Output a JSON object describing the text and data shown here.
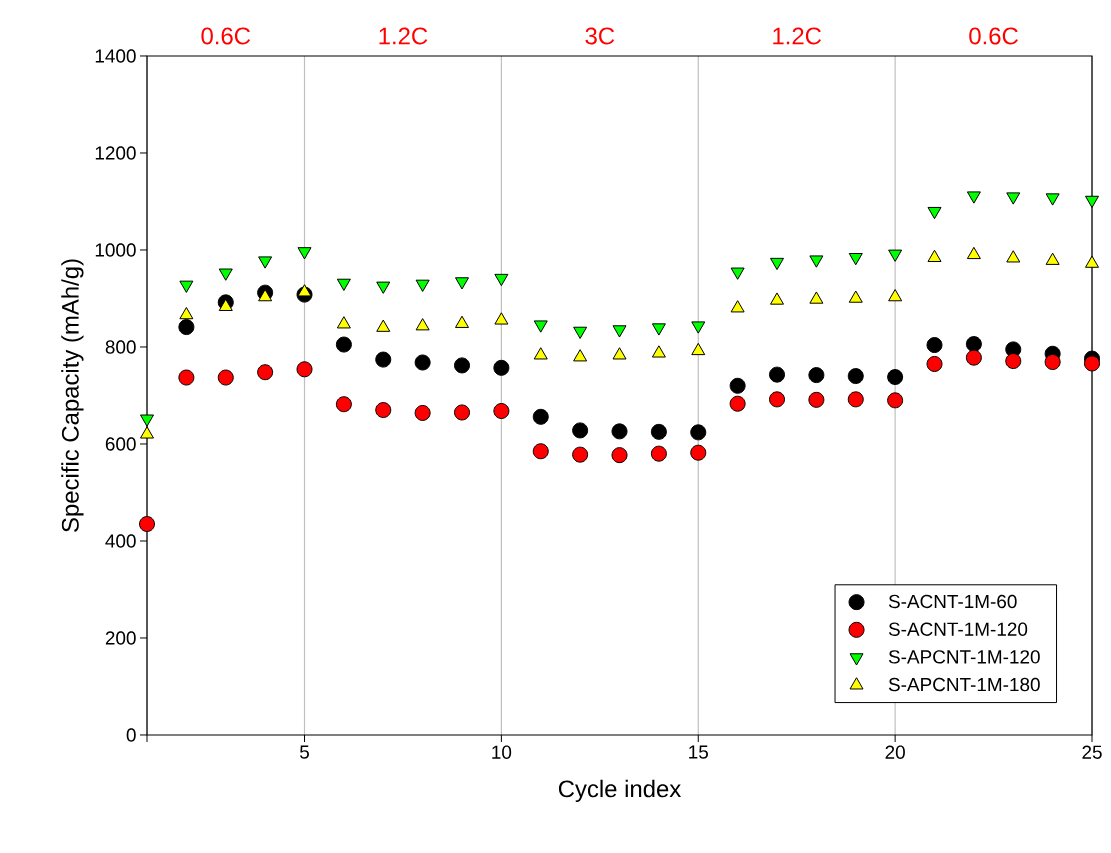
{
  "chart_data": {
    "type": "scatter",
    "xlabel": "Cycle index",
    "ylabel": "Specific Capacity (mAh/g)",
    "x": [
      1,
      2,
      3,
      4,
      5,
      6,
      7,
      8,
      9,
      10,
      11,
      12,
      13,
      14,
      15,
      16,
      17,
      18,
      19,
      20,
      21,
      22,
      23,
      24,
      25
    ],
    "xlim": [
      1,
      25
    ],
    "xticks": [
      {
        "value": 1,
        "label": null
      },
      5,
      10,
      15,
      20,
      25
    ],
    "ylim": [
      0,
      1400
    ],
    "yticks": [
      0,
      200,
      400,
      600,
      800,
      1000,
      1200,
      1400
    ],
    "grid": "x",
    "legend": "bottom right",
    "annotations": [
      "0.6C",
      "1.2C",
      "3C",
      "1.2C",
      "0.6C"
    ],
    "series": [
      {
        "name": "S-ACNT-1M-60",
        "color": "#000000",
        "marker": "circle",
        "values": [
          null,
          841,
          892,
          912,
          908,
          805,
          774,
          768,
          762,
          757,
          656,
          628,
          626,
          625,
          624,
          720,
          743,
          742,
          740,
          738,
          804,
          806,
          795,
          786,
          776
        ]
      },
      {
        "name": "S-ACNT-1M-120",
        "color": "#ff0000",
        "marker": "circle",
        "values": [
          435,
          737,
          737,
          748,
          754,
          682,
          670,
          664,
          665,
          668,
          585,
          578,
          577,
          580,
          582,
          683,
          692,
          691,
          692,
          690,
          765,
          778,
          771,
          769,
          766
        ]
      },
      {
        "name": "S-APCNT-1M-120",
        "color": "#00ff00",
        "marker": "triangle_down",
        "values": [
          652,
          928,
          953,
          978,
          997,
          932,
          926,
          930,
          935,
          942,
          846,
          833,
          836,
          840,
          844,
          955,
          975,
          980,
          985,
          992,
          1080,
          1112,
          1110,
          1108,
          1103
        ]
      },
      {
        "name": "S-APCNT-1M-180",
        "color": "#ffff00",
        "marker": "triangle",
        "values": [
          620,
          866,
          883,
          903,
          913,
          847,
          840,
          843,
          848,
          855,
          783,
          779,
          783,
          787,
          792,
          880,
          896,
          898,
          900,
          903,
          984,
          990,
          983,
          978,
          972
        ]
      }
    ]
  }
}
